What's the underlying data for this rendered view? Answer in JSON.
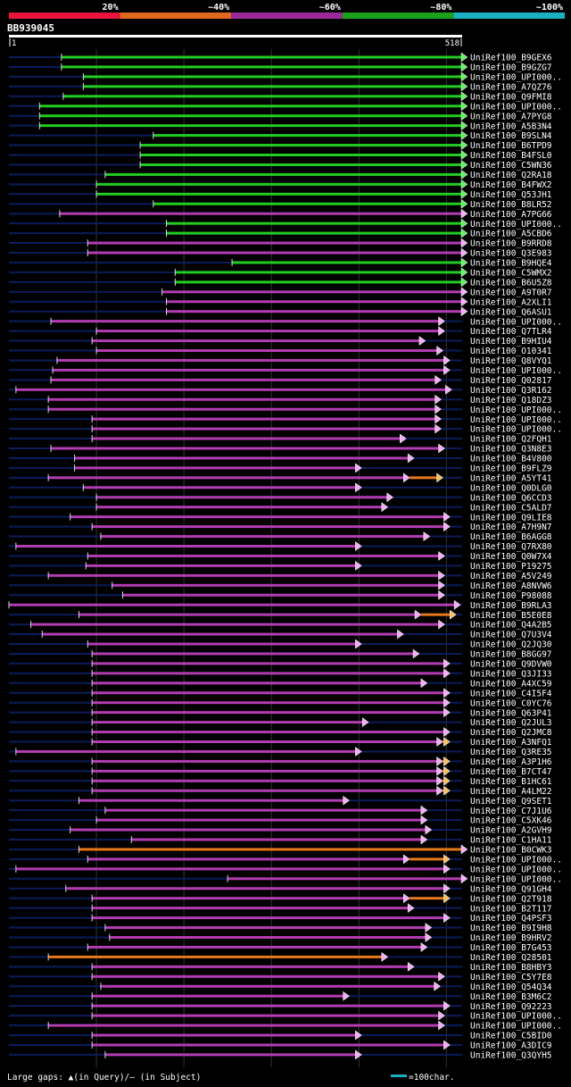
{
  "header": {
    "scale_labels": [
      "20%",
      "~40%",
      "~60%",
      "~80%",
      "~100%"
    ],
    "scale_colors": [
      "#e8143c",
      "#e0681c",
      "#9a2a9a",
      "#1aa01a",
      "#1ab0c0"
    ],
    "query_id": "BB939045",
    "ruler_start": "1",
    "ruler_end": "518"
  },
  "colors": {
    "green": "#22cc22",
    "purple": "#b23cb2",
    "orange": "#e8781c",
    "navy": "#0c1c5a",
    "marker": "#f4ee9a",
    "gridline": "#333333"
  },
  "chart_data": {
    "type": "alignment-overview",
    "query_length": 518,
    "hits": [
      {
        "name": "UniRef100_B9GEX6",
        "color": "green",
        "start": 60,
        "end": 518
      },
      {
        "name": "UniRef100_B9GZG7",
        "color": "green",
        "start": 60,
        "end": 518
      },
      {
        "name": "UniRef100_UPI000..",
        "color": "green",
        "start": 85,
        "end": 518
      },
      {
        "name": "UniRef100_A7QZ76",
        "color": "green",
        "start": 85,
        "end": 518
      },
      {
        "name": "UniRef100_Q9FMI8",
        "color": "green",
        "start": 62,
        "end": 518
      },
      {
        "name": "UniRef100_UPI000..",
        "color": "green",
        "start": 35,
        "end": 518
      },
      {
        "name": "UniRef100_A7PYG8",
        "color": "green",
        "start": 35,
        "end": 518
      },
      {
        "name": "UniRef100_A5B3N4",
        "color": "green",
        "start": 35,
        "end": 518
      },
      {
        "name": "UniRef100_B9SLN4",
        "color": "green",
        "start": 165,
        "end": 518
      },
      {
        "name": "UniRef100_B6TPD9",
        "color": "green",
        "start": 150,
        "end": 518
      },
      {
        "name": "UniRef100_B4FSL0",
        "color": "green",
        "start": 150,
        "end": 518
      },
      {
        "name": "UniRef100_C5WN36",
        "color": "green",
        "start": 150,
        "end": 518
      },
      {
        "name": "UniRef100_Q2RA18",
        "color": "green",
        "start": 110,
        "end": 518
      },
      {
        "name": "UniRef100_B4FWX2",
        "color": "green",
        "start": 100,
        "end": 518
      },
      {
        "name": "UniRef100_Q53JH1",
        "color": "green",
        "start": 100,
        "end": 518
      },
      {
        "name": "UniRef100_B8LR52",
        "color": "green",
        "start": 165,
        "end": 518
      },
      {
        "name": "UniRef100_A7PG66",
        "color": "purple",
        "start": 58,
        "end": 518
      },
      {
        "name": "UniRef100_UPI000..",
        "color": "green",
        "start": 180,
        "end": 518
      },
      {
        "name": "UniRef100_A5CBD6",
        "color": "green",
        "start": 180,
        "end": 518
      },
      {
        "name": "UniRef100_B9RRD8",
        "color": "purple",
        "start": 90,
        "end": 518
      },
      {
        "name": "UniRef100_Q3E983",
        "color": "purple",
        "start": 90,
        "end": 518
      },
      {
        "name": "UniRef100_B9HQE4",
        "color": "green",
        "start": 255,
        "end": 518
      },
      {
        "name": "UniRef100_C5WMX2",
        "color": "green",
        "start": 190,
        "end": 518
      },
      {
        "name": "UniRef100_B6U5Z8",
        "color": "green",
        "start": 190,
        "end": 518
      },
      {
        "name": "UniRef100_A9T0R7",
        "color": "purple",
        "start": 175,
        "end": 518
      },
      {
        "name": "UniRef100_A2XLI1",
        "color": "purple",
        "start": 180,
        "end": 518
      },
      {
        "name": "UniRef100_Q6ASU1",
        "color": "purple",
        "start": 180,
        "end": 518
      },
      {
        "name": "UniRef100_UPI000..",
        "color": "purple",
        "start": 48,
        "end": 492
      },
      {
        "name": "UniRef100_Q7TLR4",
        "color": "purple",
        "start": 100,
        "end": 492
      },
      {
        "name": "UniRef100_B9HIU4",
        "color": "purple",
        "start": 95,
        "end": 470
      },
      {
        "name": "UniRef100_O10341",
        "color": "purple",
        "start": 100,
        "end": 490
      },
      {
        "name": "UniRef100_Q8VYQ1",
        "color": "purple",
        "start": 55,
        "end": 498
      },
      {
        "name": "UniRef100_UPI000..",
        "color": "purple",
        "start": 50,
        "end": 498
      },
      {
        "name": "UniRef100_Q02817",
        "color": "purple",
        "start": 48,
        "end": 488
      },
      {
        "name": "UniRef100_Q3R162",
        "color": "purple",
        "start": 8,
        "end": 500
      },
      {
        "name": "UniRef100_Q18DZ3",
        "color": "purple",
        "start": 45,
        "end": 488
      },
      {
        "name": "UniRef100_UPI000..",
        "color": "purple",
        "start": 45,
        "end": 488
      },
      {
        "name": "UniRef100_UPI000..",
        "color": "purple",
        "start": 95,
        "end": 488
      },
      {
        "name": "UniRef100_UPI000..",
        "color": "purple",
        "start": 95,
        "end": 488
      },
      {
        "name": "UniRef100_Q2FQH1",
        "color": "purple",
        "start": 95,
        "end": 448
      },
      {
        "name": "UniRef100_Q3N8E3",
        "color": "purple",
        "start": 48,
        "end": 492
      },
      {
        "name": "UniRef100_B4V800",
        "color": "purple",
        "start": 75,
        "end": 457
      },
      {
        "name": "UniRef100_B9FLZ9",
        "color": "purple",
        "start": 75,
        "end": 397
      },
      {
        "name": "UniRef100_A5YT41",
        "color": "purple",
        "start": 45,
        "end": 490,
        "tail_start": 452
      },
      {
        "name": "UniRef100_Q0DLG0",
        "color": "purple",
        "start": 85,
        "end": 397
      },
      {
        "name": "UniRef100_Q6CCD3",
        "color": "purple",
        "start": 100,
        "end": 433
      },
      {
        "name": "UniRef100_C5ALD7",
        "color": "purple",
        "start": 100,
        "end": 427
      },
      {
        "name": "UniRef100_Q9LIE8",
        "color": "purple",
        "start": 70,
        "end": 498
      },
      {
        "name": "UniRef100_A7H9N7",
        "color": "purple",
        "start": 95,
        "end": 498
      },
      {
        "name": "UniRef100_B6AGG8",
        "color": "purple",
        "start": 105,
        "end": 475
      },
      {
        "name": "UniRef100_Q7RX80",
        "color": "purple",
        "start": 8,
        "end": 397
      },
      {
        "name": "UniRef100_Q0W7X4",
        "color": "purple",
        "start": 90,
        "end": 492
      },
      {
        "name": "UniRef100_P19275",
        "color": "purple",
        "start": 88,
        "end": 397
      },
      {
        "name": "UniRef100_A5V249",
        "color": "purple",
        "start": 45,
        "end": 492
      },
      {
        "name": "UniRef100_A8NVW6",
        "color": "purple",
        "start": 118,
        "end": 492
      },
      {
        "name": "UniRef100_P98088",
        "color": "purple",
        "start": 130,
        "end": 492
      },
      {
        "name": "UniRef100_B9RLA3",
        "color": "purple",
        "start": 0,
        "end": 510
      },
      {
        "name": "UniRef100_B5E0E8",
        "color": "purple",
        "start": 80,
        "end": 505,
        "tail_start": 465
      },
      {
        "name": "UniRef100_Q4A2B5",
        "color": "purple",
        "start": 25,
        "end": 492
      },
      {
        "name": "UniRef100_Q7U3V4",
        "color": "purple",
        "start": 38,
        "end": 445
      },
      {
        "name": "UniRef100_Q2JQ30",
        "color": "purple",
        "start": 90,
        "end": 397
      },
      {
        "name": "UniRef100_B8GG97",
        "color": "purple",
        "start": 95,
        "end": 463
      },
      {
        "name": "UniRef100_Q9DVW0",
        "color": "purple",
        "start": 95,
        "end": 498
      },
      {
        "name": "UniRef100_Q3JI33",
        "color": "purple",
        "start": 95,
        "end": 498
      },
      {
        "name": "UniRef100_A4XC59",
        "color": "purple",
        "start": 95,
        "end": 472
      },
      {
        "name": "UniRef100_C4I5F4",
        "color": "purple",
        "start": 95,
        "end": 498
      },
      {
        "name": "UniRef100_C0YC76",
        "color": "purple",
        "start": 95,
        "end": 498
      },
      {
        "name": "UniRef100_Q63P41",
        "color": "purple",
        "start": 95,
        "end": 498
      },
      {
        "name": "UniRef100_Q2JUL3",
        "color": "purple",
        "start": 95,
        "end": 405
      },
      {
        "name": "UniRef100_Q2JMC8",
        "color": "purple",
        "start": 95,
        "end": 498
      },
      {
        "name": "UniRef100_A3NFQ1",
        "color": "purple",
        "start": 95,
        "end": 498,
        "tail_start": 490
      },
      {
        "name": "UniRef100_Q3RE35",
        "color": "purple",
        "start": 8,
        "end": 397
      },
      {
        "name": "UniRef100_A3P1H6",
        "color": "purple",
        "start": 95,
        "end": 498,
        "tail_start": 490
      },
      {
        "name": "UniRef100_B7CT47",
        "color": "purple",
        "start": 95,
        "end": 498,
        "tail_start": 490
      },
      {
        "name": "UniRef100_B1HC61",
        "color": "purple",
        "start": 95,
        "end": 498,
        "tail_start": 490
      },
      {
        "name": "UniRef100_A4LM22",
        "color": "purple",
        "start": 95,
        "end": 498,
        "tail_start": 490
      },
      {
        "name": "UniRef100_Q9SET1",
        "color": "purple",
        "start": 80,
        "end": 383
      },
      {
        "name": "UniRef100_C7J1U6",
        "color": "purple",
        "start": 110,
        "end": 472
      },
      {
        "name": "UniRef100_C5XK46",
        "color": "purple",
        "start": 100,
        "end": 472
      },
      {
        "name": "UniRef100_A2GVH9",
        "color": "purple",
        "start": 70,
        "end": 477
      },
      {
        "name": "UniRef100_C1HA11",
        "color": "purple",
        "start": 140,
        "end": 472
      },
      {
        "name": "UniRef100_B0CWK3",
        "color": "orange",
        "start": 80,
        "end": 518
      },
      {
        "name": "UniRef100_UPI000..",
        "color": "purple",
        "start": 90,
        "end": 498,
        "tail_start": 452
      },
      {
        "name": "UniRef100_UPI000..",
        "color": "purple",
        "start": 8,
        "end": 498
      },
      {
        "name": "UniRef100_UPI000..",
        "color": "purple",
        "start": 250,
        "end": 518
      },
      {
        "name": "UniRef100_Q91GH4",
        "color": "purple",
        "start": 65,
        "end": 498
      },
      {
        "name": "UniRef100_Q2T918",
        "color": "purple",
        "start": 95,
        "end": 498,
        "tail_start": 452
      },
      {
        "name": "UniRef100_B2T117",
        "color": "purple",
        "start": 95,
        "end": 457
      },
      {
        "name": "UniRef100_Q4PSF3",
        "color": "purple",
        "start": 95,
        "end": 498
      },
      {
        "name": "UniRef100_B9I9H8",
        "color": "purple",
        "start": 110,
        "end": 477
      },
      {
        "name": "UniRef100_B9HRV2",
        "color": "purple",
        "start": 115,
        "end": 477
      },
      {
        "name": "UniRef100_B7G453",
        "color": "purple",
        "start": 90,
        "end": 472
      },
      {
        "name": "UniRef100_Q28501",
        "color": "orange",
        "start": 45,
        "end": 427
      },
      {
        "name": "UniRef100_B8HBY3",
        "color": "purple",
        "start": 95,
        "end": 457
      },
      {
        "name": "UniRef100_C5Y7E8",
        "color": "purple",
        "start": 95,
        "end": 492
      },
      {
        "name": "UniRef100_Q54Q34",
        "color": "purple",
        "start": 105,
        "end": 487
      },
      {
        "name": "UniRef100_B3M6C2",
        "color": "purple",
        "start": 95,
        "end": 383
      },
      {
        "name": "UniRef100_Q92223",
        "color": "purple",
        "start": 95,
        "end": 498
      },
      {
        "name": "UniRef100_UPI000..",
        "color": "purple",
        "start": 95,
        "end": 492
      },
      {
        "name": "UniRef100_UPI000..",
        "color": "purple",
        "start": 45,
        "end": 492
      },
      {
        "name": "UniRef100_C5BID0",
        "color": "purple",
        "start": 95,
        "end": 397
      },
      {
        "name": "UniRef100_A3DIC9",
        "color": "purple",
        "start": 95,
        "end": 498
      },
      {
        "name": "UniRef100_Q3QYH5",
        "color": "purple",
        "start": 110,
        "end": 397
      }
    ]
  },
  "footer": {
    "legend_gaps": "Large gaps: ▲(in Query)/– (in Subject)",
    "legend_scale": "=100char."
  }
}
